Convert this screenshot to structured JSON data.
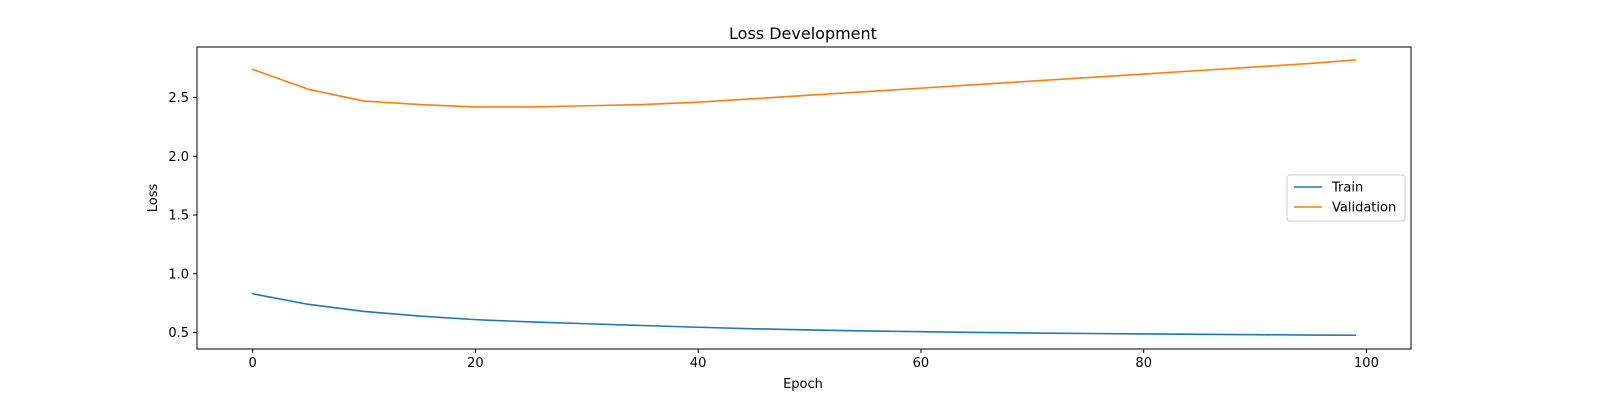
{
  "chart_data": {
    "type": "line",
    "title": "Loss Development",
    "xlabel": "Epoch",
    "ylabel": "Loss",
    "xlim": [
      -5,
      104
    ],
    "ylim": [
      0.36,
      2.93
    ],
    "xticks": [
      0,
      20,
      40,
      60,
      80,
      100
    ],
    "yticks": [
      0.5,
      1.0,
      1.5,
      2.0,
      2.5
    ],
    "ytick_labels": [
      "0.5",
      "1.0",
      "1.5",
      "2.0",
      "2.5"
    ],
    "grid": false,
    "legend_position": "center-right",
    "x": [
      0,
      5,
      10,
      15,
      20,
      25,
      30,
      35,
      40,
      45,
      50,
      55,
      60,
      65,
      70,
      75,
      80,
      85,
      90,
      95,
      99
    ],
    "series": [
      {
        "name": "Train",
        "color": "#1f77b4",
        "values": [
          0.83,
          0.74,
          0.68,
          0.64,
          0.61,
          0.59,
          0.575,
          0.56,
          0.545,
          0.532,
          0.522,
          0.514,
          0.507,
          0.501,
          0.496,
          0.492,
          0.488,
          0.485,
          0.482,
          0.479,
          0.477
        ]
      },
      {
        "name": "Validation",
        "color": "#ff7f0e",
        "values": [
          2.74,
          2.57,
          2.47,
          2.44,
          2.42,
          2.42,
          2.43,
          2.44,
          2.46,
          2.49,
          2.52,
          2.55,
          2.58,
          2.61,
          2.64,
          2.67,
          2.7,
          2.73,
          2.76,
          2.79,
          2.82
        ]
      }
    ]
  }
}
